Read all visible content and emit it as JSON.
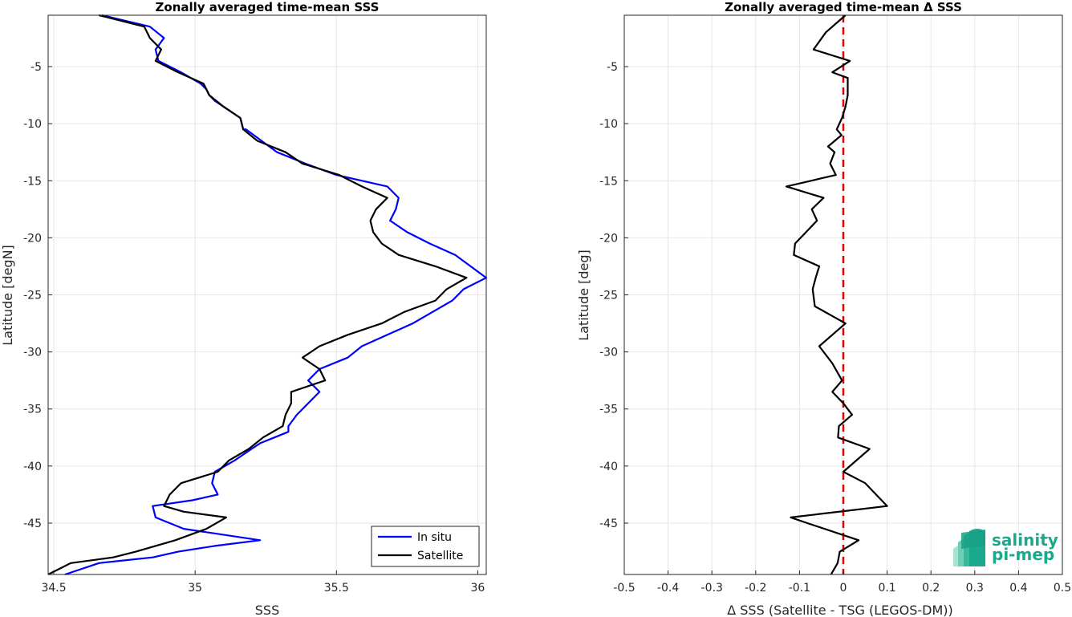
{
  "chart_data": [
    {
      "type": "line",
      "title": "Zonally averaged time-mean SSS",
      "xlabel": "SSS",
      "ylabel": "Latitude [degN]",
      "xlim": [
        34.48,
        36.03
      ],
      "ylim": [
        -49.5,
        -0.5
      ],
      "xticks": [
        "34.5",
        "35",
        "35.5",
        "36"
      ],
      "xtick_values": [
        34.5,
        35,
        35.5,
        36
      ],
      "yticks": [
        "-5",
        "-10",
        "-15",
        "-20",
        "-25",
        "-30",
        "-35",
        "-40",
        "-45"
      ],
      "ytick_values": [
        -5,
        -10,
        -15,
        -20,
        -25,
        -30,
        -35,
        -40,
        -45
      ],
      "grid": true,
      "legend_position": "bottom-right",
      "series": [
        {
          "name": "In situ",
          "color": "#0000ff",
          "x": [
            34.67,
            34.84,
            34.89,
            34.86,
            34.87,
            34.95,
            35.02,
            35.04,
            35.05,
            35.07,
            35.1,
            35.16,
            35.17,
            35.18,
            35.29,
            35.39,
            35.5,
            35.68,
            35.72,
            35.71,
            35.69,
            35.75,
            35.83,
            35.92,
            36.03,
            35.95,
            35.91,
            35.84,
            35.77,
            35.68,
            35.59,
            35.54,
            35.44,
            35.4,
            35.44,
            35.4,
            35.36,
            35.33,
            35.33,
            35.28,
            35.23,
            35.2,
            35.14,
            35.07,
            35.06,
            35.08,
            34.99,
            34.85,
            34.86,
            34.96,
            35.23,
            35.07,
            34.94,
            34.85,
            34.66,
            34.54
          ],
          "y": [
            -0.5,
            -1.5,
            -2.5,
            -3.5,
            -4.5,
            -5.5,
            -6.5,
            -7.0,
            -7.5,
            -8.0,
            -8.5,
            -9.5,
            -10.5,
            -10.5,
            -12.5,
            -13.5,
            -14.5,
            -15.5,
            -16.5,
            -17.5,
            -18.5,
            -19.5,
            -20.5,
            -21.5,
            -23.5,
            -24.5,
            -25.5,
            -26.5,
            -27.5,
            -28.5,
            -29.5,
            -30.5,
            -31.5,
            -32.5,
            -33.5,
            -34.5,
            -35.5,
            -36.5,
            -37.0,
            -37.5,
            -38.0,
            -38.5,
            -39.5,
            -40.5,
            -41.5,
            -42.5,
            -43.0,
            -43.5,
            -44.5,
            -45.5,
            -46.5,
            -47.0,
            -47.5,
            -48.0,
            -48.5,
            -49.5
          ]
        },
        {
          "name": "Satellite",
          "color": "#000000",
          "x": [
            34.66,
            34.82,
            34.84,
            34.88,
            34.86,
            34.94,
            35.03,
            35.05,
            35.1,
            35.16,
            35.17,
            35.17,
            35.22,
            35.32,
            35.38,
            35.51,
            35.59,
            35.68,
            35.64,
            35.62,
            35.63,
            35.66,
            35.72,
            35.85,
            35.96,
            35.89,
            35.85,
            35.74,
            35.66,
            35.54,
            35.44,
            35.38,
            35.44,
            35.46,
            35.34,
            35.34,
            35.32,
            35.31,
            35.24,
            35.19,
            35.12,
            35.08,
            34.95,
            34.91,
            34.89,
            34.96,
            35.11,
            35.04,
            34.93,
            34.79,
            34.71,
            34.56,
            34.48
          ],
          "y": [
            -0.5,
            -1.5,
            -2.5,
            -3.5,
            -4.5,
            -5.5,
            -6.5,
            -7.5,
            -8.5,
            -9.5,
            -10.5,
            -10.5,
            -11.5,
            -12.5,
            -13.5,
            -14.5,
            -15.5,
            -16.5,
            -17.5,
            -18.5,
            -19.5,
            -20.5,
            -21.5,
            -22.5,
            -23.5,
            -24.5,
            -25.5,
            -26.5,
            -27.5,
            -28.5,
            -29.5,
            -30.5,
            -31.5,
            -32.5,
            -33.5,
            -34.5,
            -35.5,
            -36.5,
            -37.5,
            -38.5,
            -39.5,
            -40.5,
            -41.5,
            -42.5,
            -43.5,
            -44.0,
            -44.5,
            -45.5,
            -46.5,
            -47.5,
            -48.0,
            -48.5,
            -49.5
          ]
        }
      ],
      "legend": [
        "In situ",
        "Satellite"
      ]
    },
    {
      "type": "line",
      "title": "Zonally averaged time-mean Δ SSS",
      "xlabel": "Δ SSS (Satellite - TSG (LEGOS-DM))",
      "ylabel": "Latitude [deg]",
      "xlim": [
        -0.5,
        0.5
      ],
      "ylim": [
        -49.5,
        -0.5
      ],
      "xticks": [
        "-0.5",
        "-0.4",
        "-0.3",
        "-0.2",
        "-0.1",
        "0",
        "0.1",
        "0.2",
        "0.3",
        "0.4",
        "0.5"
      ],
      "xtick_values": [
        -0.5,
        -0.4,
        -0.3,
        -0.2,
        -0.1,
        0,
        0.1,
        0.2,
        0.3,
        0.4,
        0.5
      ],
      "yticks": [
        "-5",
        "-10",
        "-15",
        "-20",
        "-25",
        "-30",
        "-35",
        "-40",
        "-45"
      ],
      "ytick_values": [
        -5,
        -10,
        -15,
        -20,
        -25,
        -30,
        -35,
        -40,
        -45
      ],
      "grid": true,
      "reference_line": {
        "x": 0,
        "color": "#dd0000",
        "style": "dashed"
      },
      "series": [
        {
          "color": "#000000",
          "x": [
            0.005,
            -0.04,
            -0.068,
            0.015,
            -0.025,
            0.01,
            0.01,
            0.005,
            -0.003,
            -0.015,
            -0.004,
            -0.035,
            -0.02,
            -0.03,
            -0.017,
            -0.13,
            -0.045,
            -0.072,
            -0.06,
            -0.085,
            -0.11,
            -0.113,
            -0.055,
            -0.063,
            -0.07,
            -0.065,
            0.005,
            -0.055,
            -0.025,
            -0.003,
            -0.025,
            0.0,
            0.02,
            -0.01,
            -0.012,
            0.06,
            0.0,
            0.05,
            0.1,
            -0.12,
            -0.082,
            0.035,
            -0.008,
            -0.013,
            -0.028
          ],
          "y": [
            -0.5,
            -2.0,
            -3.5,
            -4.5,
            -5.5,
            -6.0,
            -7.5,
            -8.5,
            -9.5,
            -10.5,
            -11.0,
            -12.0,
            -12.5,
            -13.5,
            -14.5,
            -15.5,
            -16.5,
            -17.5,
            -18.5,
            -19.5,
            -20.5,
            -21.5,
            -22.5,
            -23.5,
            -24.5,
            -26.0,
            -27.5,
            -29.5,
            -31.0,
            -32.5,
            -33.5,
            -34.5,
            -35.5,
            -36.5,
            -37.5,
            -38.5,
            -40.5,
            -41.5,
            -43.5,
            -44.5,
            -45.0,
            -46.5,
            -47.5,
            -48.5,
            -49.5
          ]
        }
      ]
    }
  ],
  "logo": {
    "line1": "salinity",
    "line2": "pi-mep",
    "color": "#1ba98e"
  }
}
